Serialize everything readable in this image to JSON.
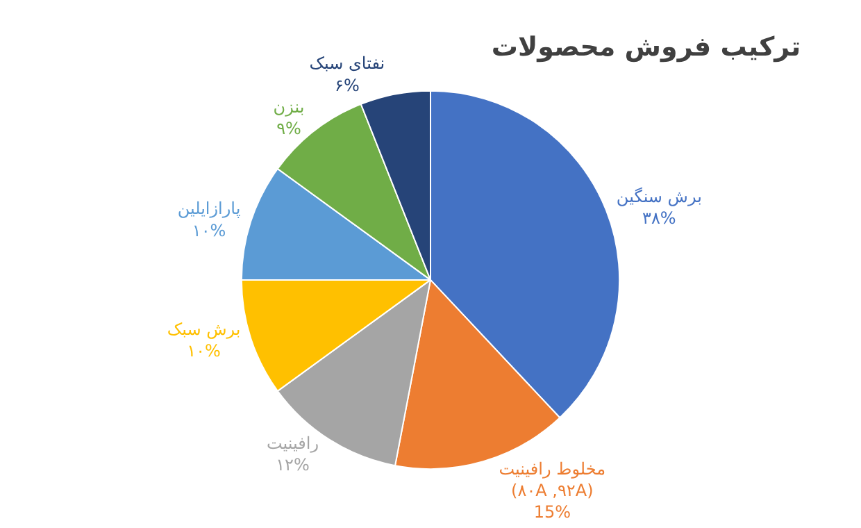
{
  "chart_data": {
    "type": "pie",
    "title": "ترکیب فروش محصولات",
    "categories": [
      "برش سنگین",
      "مخلوط رافینیت\n(۸۰A ,۹۲A)",
      "رافینیت",
      "برش سبک",
      "پارازایلین",
      "بنزن",
      "نفتای سبک"
    ],
    "values": [
      38,
      15,
      12,
      10,
      10,
      9,
      6
    ],
    "value_labels": [
      "۳۸%",
      "15%",
      "۱۲%",
      "۱۰%",
      "۱۰%",
      "۹%",
      "۶%"
    ],
    "colors": [
      "#4472c4",
      "#ed7d31",
      "#a5a5a5",
      "#ffc000",
      "#5b9bd5",
      "#70ad47",
      "#264478"
    ],
    "legend": false
  }
}
